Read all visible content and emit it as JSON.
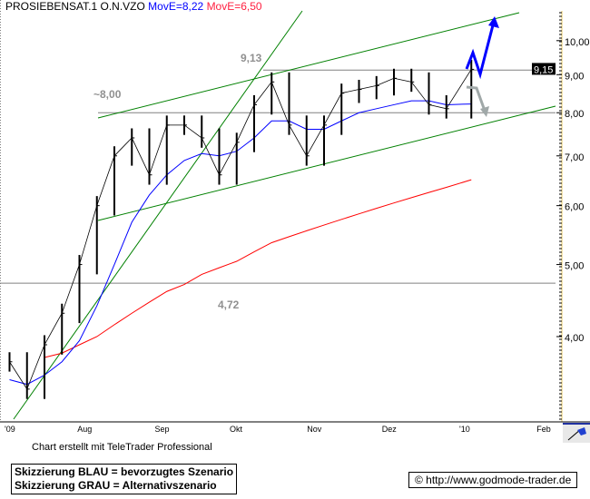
{
  "header": {
    "symbol": "PROSIEBENSAT.1 O.N.VZO",
    "ma_short_label": "MovE=8,22",
    "ma_long_label": "MovE=6,50"
  },
  "colors": {
    "price": "#000000",
    "ma_short": "#0000ff",
    "ma_long": "#ff0000",
    "trend": "#008000",
    "level": "#808080",
    "scenario_blue": "#0000ff",
    "scenario_gray": "#a0a8a8"
  },
  "chart_data": {
    "type": "line",
    "scale": "log",
    "ylim": [
      3.2,
      10.8
    ],
    "yticks": [
      "10,00",
      "9,00",
      "8,00",
      "7,00",
      "6,00",
      "5,00",
      "4,00"
    ],
    "ytick_values": [
      10,
      9,
      8,
      7,
      6,
      5,
      4
    ],
    "xticks": [
      "'09",
      "Aug",
      "Sep",
      "Okt",
      "Nov",
      "Dez",
      "'10",
      "Feb"
    ],
    "xtick_dates": [
      "2009-07-01",
      "2009-08-01",
      "2009-09-01",
      "2009-10-01",
      "2009-11-01",
      "2009-12-01",
      "2010-01-01",
      "2010-02-01"
    ],
    "x": [
      "2009-07-03",
      "2009-07-10",
      "2009-07-17",
      "2009-07-24",
      "2009-07-31",
      "2009-08-07",
      "2009-08-14",
      "2009-08-21",
      "2009-08-28",
      "2009-09-04",
      "2009-09-11",
      "2009-09-18",
      "2009-09-25",
      "2009-10-02",
      "2009-10-09",
      "2009-10-16",
      "2009-10-23",
      "2009-10-30",
      "2009-11-06",
      "2009-11-13",
      "2009-11-20",
      "2009-11-27",
      "2009-12-04",
      "2009-12-11",
      "2009-12-18",
      "2009-12-25",
      "2010-01-04"
    ],
    "series": [
      {
        "name": "PROSIEBENSAT.1 O.N.VZO",
        "values": [
          3.7,
          3.4,
          3.9,
          4.3,
          5.0,
          6.0,
          7.0,
          7.4,
          6.6,
          7.7,
          7.7,
          7.4,
          6.6,
          7.3,
          8.2,
          8.8,
          7.7,
          7.0,
          7.7,
          8.5,
          8.6,
          8.7,
          8.9,
          8.8,
          8.2,
          8.1,
          9.15
        ]
      },
      {
        "name": "MovE=8,22",
        "values": [
          3.5,
          3.45,
          3.55,
          3.7,
          3.95,
          4.4,
          5.0,
          5.7,
          6.2,
          6.6,
          6.9,
          7.05,
          7.0,
          7.1,
          7.4,
          7.8,
          7.8,
          7.6,
          7.6,
          7.8,
          8.0,
          8.1,
          8.2,
          8.3,
          8.3,
          8.2,
          8.22
        ]
      },
      {
        "name": "MovE=6,50",
        "values": [
          null,
          null,
          3.75,
          3.8,
          3.9,
          4.0,
          4.15,
          4.3,
          4.45,
          4.6,
          4.7,
          4.85,
          4.95,
          5.05,
          5.2,
          5.35,
          5.45,
          5.55,
          5.65,
          5.75,
          5.85,
          5.95,
          6.05,
          6.15,
          6.25,
          6.35,
          6.5
        ]
      }
    ],
    "levels": [
      {
        "label": "9,13",
        "value": 9.13
      },
      {
        "label": "~8,00",
        "value": 8.0
      },
      {
        "label": "4,72",
        "value": 4.72
      }
    ],
    "last_price_tag": "9,15"
  },
  "footer": {
    "credit": "Chart erstellt mit TeleTrader Professional",
    "legend_blue": "Skizzierung BLAU = bevorzugtes Szenario",
    "legend_gray": "Skizzierung GRAU = Alternativszenario",
    "copyright": "© http://www.godmode-trader.de"
  }
}
